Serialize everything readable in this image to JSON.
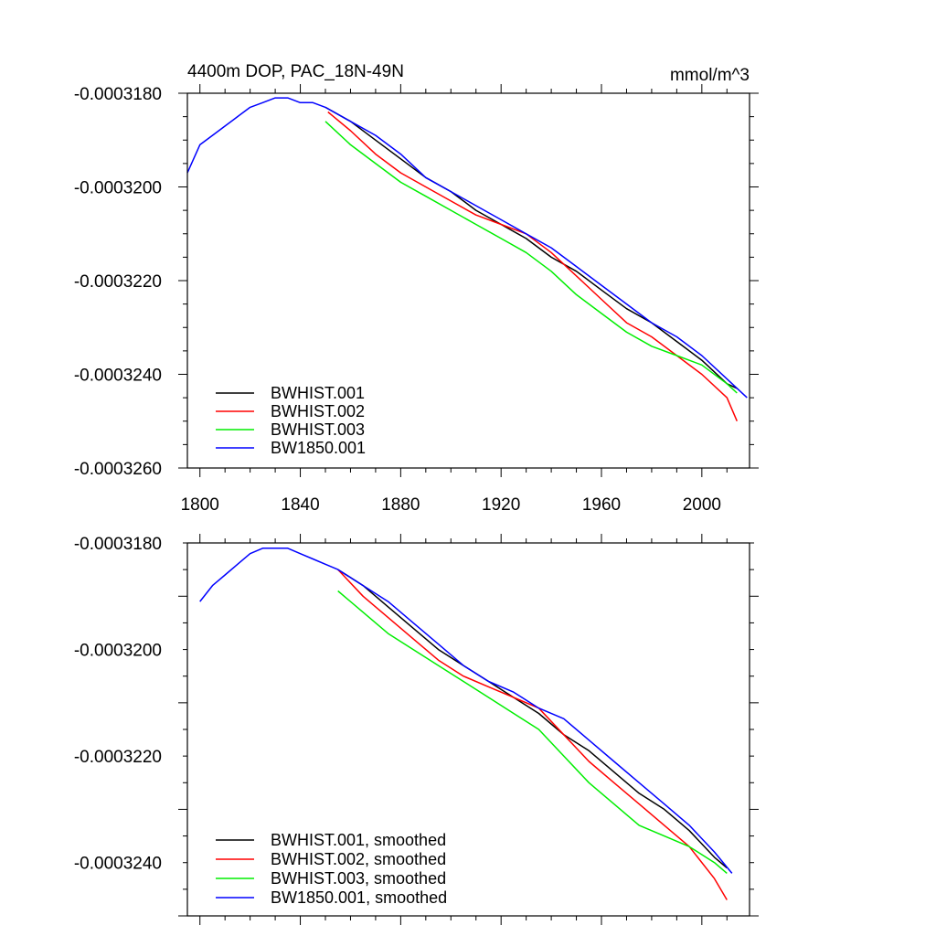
{
  "chart_data": [
    {
      "type": "line",
      "title": "4400m DOP, PAC_18N-49N",
      "units": "mmol/m^3",
      "xlim": [
        1795,
        2019
      ],
      "ylim": [
        -0.000326,
        -0.000318
      ],
      "xticks": [
        1800,
        1840,
        1880,
        1920,
        1960,
        2000
      ],
      "yticks": [
        -0.000318,
        -0.00032,
        -0.000322,
        -0.000324,
        -0.000326
      ],
      "ytick_labels": [
        "-0.0003180",
        "-0.0003200",
        "-0.0003220",
        "-0.0003240",
        "-0.0003260"
      ],
      "xtick_labels": [
        "1800",
        "1840",
        "1880",
        "1920",
        "1960",
        "2000"
      ],
      "legend_position": "bottom-left",
      "grid": false,
      "series": [
        {
          "name": "BWHIST.001",
          "color": "#000000",
          "x": [
            1850,
            1860,
            1870,
            1880,
            1890,
            1900,
            1910,
            1920,
            1930,
            1940,
            1950,
            1960,
            1970,
            1980,
            1990,
            2000,
            2010,
            2014
          ],
          "y": [
            -0.0003183,
            -0.0003186,
            -0.000319,
            -0.0003194,
            -0.0003198,
            -0.0003201,
            -0.0003205,
            -0.0003208,
            -0.0003211,
            -0.0003215,
            -0.0003218,
            -0.0003222,
            -0.0003226,
            -0.0003229,
            -0.0003233,
            -0.0003237,
            -0.0003242,
            -0.0003243
          ]
        },
        {
          "name": "BWHIST.002",
          "color": "#ff0000",
          "x": [
            1851,
            1860,
            1870,
            1880,
            1890,
            1900,
            1910,
            1920,
            1930,
            1940,
            1950,
            1960,
            1970,
            1980,
            1990,
            2000,
            2010,
            2014
          ],
          "y": [
            -0.0003184,
            -0.0003188,
            -0.0003193,
            -0.0003197,
            -0.00032,
            -0.0003203,
            -0.0003206,
            -0.0003208,
            -0.000321,
            -0.0003214,
            -0.0003219,
            -0.0003224,
            -0.0003229,
            -0.0003232,
            -0.0003236,
            -0.000324,
            -0.0003245,
            -0.000325
          ]
        },
        {
          "name": "BWHIST.003",
          "color": "#00ee00",
          "x": [
            1850,
            1860,
            1870,
            1880,
            1890,
            1900,
            1910,
            1920,
            1930,
            1940,
            1950,
            1960,
            1970,
            1980,
            1990,
            2000,
            2010,
            2014
          ],
          "y": [
            -0.0003186,
            -0.0003191,
            -0.0003195,
            -0.0003199,
            -0.0003202,
            -0.0003205,
            -0.0003208,
            -0.0003211,
            -0.0003214,
            -0.0003218,
            -0.0003223,
            -0.0003227,
            -0.0003231,
            -0.0003234,
            -0.0003236,
            -0.0003238,
            -0.0003242,
            -0.0003244
          ]
        },
        {
          "name": "BW1850.001",
          "color": "#0000ff",
          "x": [
            1795,
            1800,
            1805,
            1810,
            1815,
            1820,
            1825,
            1830,
            1835,
            1840,
            1845,
            1850,
            1860,
            1870,
            1880,
            1890,
            1900,
            1910,
            1920,
            1930,
            1940,
            1950,
            1960,
            1970,
            1980,
            1990,
            2000,
            2010,
            2018
          ],
          "y": [
            -0.0003197,
            -0.0003191,
            -0.0003189,
            -0.0003187,
            -0.0003185,
            -0.0003183,
            -0.0003182,
            -0.0003181,
            -0.0003181,
            -0.0003182,
            -0.0003182,
            -0.0003183,
            -0.0003186,
            -0.0003189,
            -0.0003193,
            -0.0003198,
            -0.0003201,
            -0.0003204,
            -0.0003207,
            -0.000321,
            -0.0003213,
            -0.0003217,
            -0.0003221,
            -0.0003225,
            -0.0003229,
            -0.0003232,
            -0.0003236,
            -0.0003241,
            -0.0003245
          ]
        }
      ]
    },
    {
      "type": "line",
      "title": "",
      "xlim": [
        1795,
        2019
      ],
      "ylim": [
        -0.000325,
        -0.000318
      ],
      "xticks": [
        1800,
        1840,
        1880,
        1920,
        1960,
        2000
      ],
      "yticks": [
        -0.000318,
        -0.00032,
        -0.000322,
        -0.000324
      ],
      "ytick_labels": [
        "-0.0003180",
        "-0.0003200",
        "-0.0003220",
        "-0.0003240"
      ],
      "legend_position": "bottom-left",
      "grid": false,
      "series": [
        {
          "name": "BWHIST.001, smoothed",
          "color": "#000000",
          "x": [
            1855,
            1865,
            1875,
            1885,
            1895,
            1905,
            1915,
            1925,
            1935,
            1945,
            1955,
            1965,
            1975,
            1985,
            1995,
            2005,
            2010
          ],
          "y": [
            -0.0003185,
            -0.0003188,
            -0.0003192,
            -0.0003196,
            -0.00032,
            -0.0003203,
            -0.0003206,
            -0.0003209,
            -0.0003212,
            -0.0003216,
            -0.0003219,
            -0.0003223,
            -0.0003227,
            -0.000323,
            -0.0003234,
            -0.0003239,
            -0.0003241
          ]
        },
        {
          "name": "BWHIST.002, smoothed",
          "color": "#ff0000",
          "x": [
            1855,
            1865,
            1875,
            1885,
            1895,
            1905,
            1915,
            1925,
            1935,
            1945,
            1955,
            1965,
            1975,
            1985,
            1995,
            2005,
            2010
          ],
          "y": [
            -0.0003185,
            -0.000319,
            -0.0003194,
            -0.0003198,
            -0.0003202,
            -0.0003205,
            -0.0003207,
            -0.0003209,
            -0.0003211,
            -0.0003216,
            -0.0003221,
            -0.0003225,
            -0.0003229,
            -0.0003233,
            -0.0003237,
            -0.0003243,
            -0.0003247
          ]
        },
        {
          "name": "BWHIST.003, smoothed",
          "color": "#00ee00",
          "x": [
            1855,
            1865,
            1875,
            1885,
            1895,
            1905,
            1915,
            1925,
            1935,
            1945,
            1955,
            1965,
            1975,
            1985,
            1995,
            2005,
            2010
          ],
          "y": [
            -0.0003189,
            -0.0003193,
            -0.0003197,
            -0.00032,
            -0.0003203,
            -0.0003206,
            -0.0003209,
            -0.0003212,
            -0.0003215,
            -0.000322,
            -0.0003225,
            -0.0003229,
            -0.0003233,
            -0.0003235,
            -0.0003237,
            -0.000324,
            -0.0003242
          ]
        },
        {
          "name": "BW1850.001, smoothed",
          "color": "#0000ff",
          "x": [
            1800,
            1805,
            1810,
            1815,
            1820,
            1825,
            1830,
            1835,
            1840,
            1845,
            1850,
            1855,
            1865,
            1875,
            1885,
            1895,
            1905,
            1915,
            1925,
            1935,
            1945,
            1955,
            1965,
            1975,
            1985,
            1995,
            2005,
            2012
          ],
          "y": [
            -0.0003191,
            -0.0003188,
            -0.0003186,
            -0.0003184,
            -0.0003182,
            -0.0003181,
            -0.0003181,
            -0.0003181,
            -0.0003182,
            -0.0003183,
            -0.0003184,
            -0.0003185,
            -0.0003188,
            -0.0003191,
            -0.0003195,
            -0.0003199,
            -0.0003203,
            -0.0003206,
            -0.0003208,
            -0.0003211,
            -0.0003213,
            -0.0003217,
            -0.0003221,
            -0.0003225,
            -0.0003229,
            -0.0003233,
            -0.0003238,
            -0.0003242
          ]
        }
      ]
    }
  ]
}
